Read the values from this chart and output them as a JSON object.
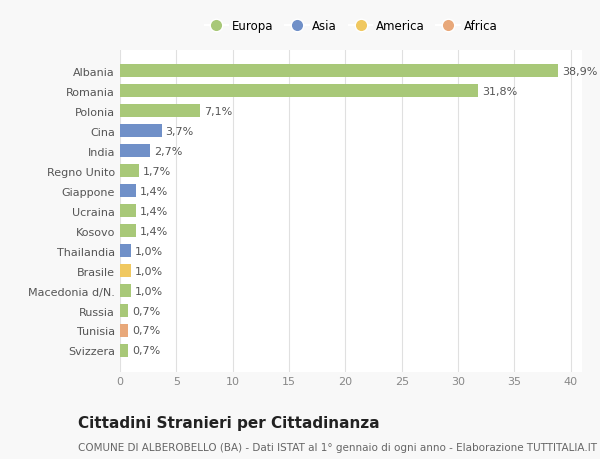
{
  "categories": [
    "Svizzera",
    "Tunisia",
    "Russia",
    "Macedonia d/N.",
    "Brasile",
    "Thailandia",
    "Kosovo",
    "Ucraina",
    "Giappone",
    "Regno Unito",
    "India",
    "Cina",
    "Polonia",
    "Romania",
    "Albania"
  ],
  "values": [
    0.7,
    0.7,
    0.7,
    1.0,
    1.0,
    1.0,
    1.4,
    1.4,
    1.4,
    1.7,
    2.7,
    3.7,
    7.1,
    31.8,
    38.9
  ],
  "labels": [
    "0,7%",
    "0,7%",
    "0,7%",
    "1,0%",
    "1,0%",
    "1,0%",
    "1,4%",
    "1,4%",
    "1,4%",
    "1,7%",
    "2,7%",
    "3,7%",
    "7,1%",
    "31,8%",
    "38,9%"
  ],
  "colors": [
    "#a8c878",
    "#e8a87a",
    "#a8c878",
    "#a8c878",
    "#f0c860",
    "#7090c8",
    "#a8c878",
    "#a8c878",
    "#7090c8",
    "#a8c878",
    "#7090c8",
    "#7090c8",
    "#a8c878",
    "#a8c878",
    "#a8c878"
  ],
  "legend_labels": [
    "Europa",
    "Asia",
    "America",
    "Africa"
  ],
  "legend_colors": [
    "#a8c878",
    "#7090c8",
    "#f0c860",
    "#e8a87a"
  ],
  "title": "Cittadini Stranieri per Cittadinanza",
  "subtitle": "COMUNE DI ALBEROBELLO (BA) - Dati ISTAT al 1° gennaio di ogni anno - Elaborazione TUTTITALIA.IT",
  "xlim": [
    0,
    41
  ],
  "xticks": [
    0,
    5,
    10,
    15,
    20,
    25,
    30,
    35,
    40
  ],
  "plot_bg": "#ffffff",
  "fig_bg": "#f8f8f8",
  "grid_color": "#e0e0e0",
  "bar_height": 0.65,
  "title_fontsize": 11,
  "subtitle_fontsize": 7.5,
  "tick_fontsize": 8,
  "label_fontsize": 8
}
